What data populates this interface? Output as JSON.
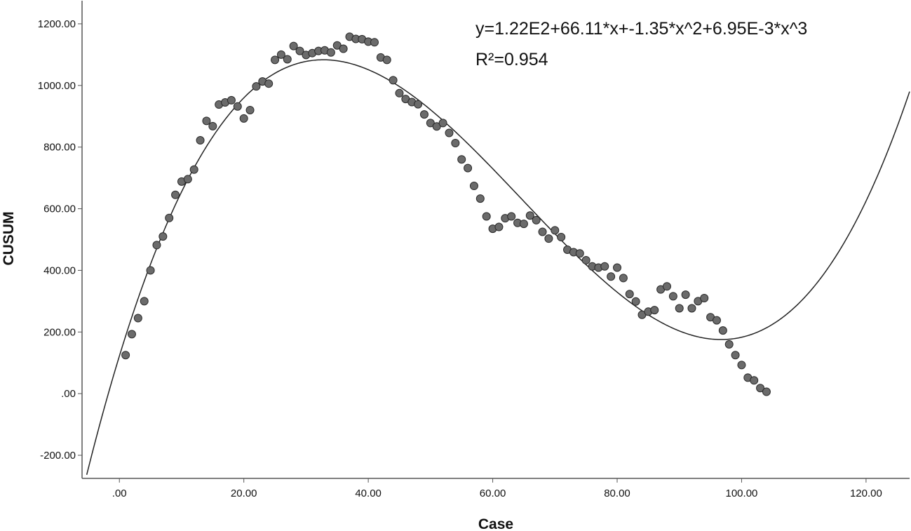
{
  "chart_data": {
    "type": "scatter",
    "xlabel": "Case",
    "ylabel": "CUSUM",
    "xlim": [
      -6,
      127
    ],
    "ylim": [
      -275,
      1275
    ],
    "x_ticks": [
      0,
      20,
      40,
      60,
      80,
      100,
      120
    ],
    "x_tick_labels": [
      ".00",
      "20.00",
      "40.00",
      "60.00",
      "80.00",
      "100.00",
      "120.00"
    ],
    "y_ticks": [
      -200,
      0,
      200,
      400,
      600,
      800,
      1000,
      1200
    ],
    "y_tick_labels": [
      "-200.00",
      ".00",
      "200.00",
      "400.00",
      "600.00",
      "800.00",
      "1000.00",
      "1200.00"
    ],
    "grid": false,
    "marker_color": "#6b6b6b",
    "marker_edge_color": "#2b2b2b",
    "line_color": "#222222",
    "annotations": {
      "equation": "y=1.22E2+66.11*x+-1.35*x^2+6.95E-3*x^3",
      "r_squared": "R²=0.954"
    },
    "fit": {
      "type": "cubic",
      "coefficients": [
        122,
        66.11,
        -1.35,
        0.00695
      ],
      "x_range": [
        -6,
        127
      ]
    },
    "x": [
      1,
      2,
      3,
      4,
      5,
      6,
      7,
      8,
      9,
      10,
      11,
      12,
      13,
      14,
      15,
      16,
      17,
      18,
      19,
      20,
      21,
      22,
      23,
      24,
      25,
      26,
      27,
      28,
      29,
      30,
      31,
      32,
      33,
      34,
      35,
      36,
      37,
      38,
      39,
      40,
      41,
      42,
      43,
      44,
      45,
      46,
      47,
      48,
      49,
      50,
      51,
      52,
      53,
      54,
      55,
      56,
      57,
      58,
      59,
      60,
      61,
      62,
      63,
      64,
      65,
      66,
      67,
      68,
      69,
      70,
      71,
      72,
      73,
      74,
      75,
      76,
      77,
      78,
      79,
      80,
      81,
      82,
      83,
      84,
      85,
      86,
      87,
      88,
      89,
      90,
      91,
      92,
      93,
      94,
      95,
      96,
      97,
      98,
      99,
      100,
      101,
      102,
      103,
      104
    ],
    "y": [
      125,
      193,
      245,
      300,
      400,
      482,
      510,
      570,
      645,
      688,
      696,
      727,
      822,
      885,
      868,
      938,
      945,
      952,
      932,
      893,
      920,
      997,
      1013,
      1006,
      1083,
      1100,
      1085,
      1128,
      1112,
      1099,
      1105,
      1112,
      1114,
      1107,
      1130,
      1119,
      1158,
      1151,
      1150,
      1142,
      1140,
      1091,
      1083,
      1017,
      975,
      956,
      946,
      939,
      906,
      878,
      867,
      878,
      846,
      813,
      760,
      732,
      674,
      633,
      575,
      535,
      541,
      569,
      575,
      554,
      551,
      578,
      563,
      525,
      503,
      530,
      508,
      467,
      459,
      455,
      433,
      413,
      409,
      413,
      380,
      409,
      375,
      323,
      299,
      256,
      266,
      271,
      338,
      348,
      316,
      277,
      321,
      277,
      300,
      310,
      248,
      238,
      205,
      160,
      125,
      93,
      52,
      43,
      18,
      6
    ]
  }
}
